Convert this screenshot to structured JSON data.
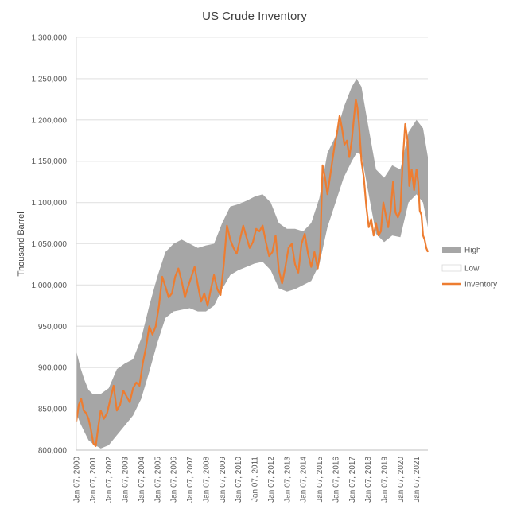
{
  "chart_data": {
    "type": "area",
    "title": "US Crude Inventory",
    "xlabel": "",
    "ylabel": "Thousand Barrel",
    "ylim": [
      800000,
      1300000
    ],
    "y_ticks": [
      800000,
      850000,
      900000,
      950000,
      1000000,
      1050000,
      1100000,
      1150000,
      1200000,
      1250000,
      1300000
    ],
    "y_tick_labels": [
      "800,000",
      "850,000",
      "900,000",
      "950,000",
      "1,000,000",
      "1,050,000",
      "1,100,000",
      "1,150,000",
      "1,200,000",
      "1,250,000",
      "1,300,000"
    ],
    "x_range": [
      2000.0,
      2021.7
    ],
    "x_ticks": [
      2000,
      2001,
      2002,
      2003,
      2004,
      2005,
      2006,
      2007,
      2008,
      2009,
      2010,
      2011,
      2012,
      2013,
      2014,
      2015,
      2016,
      2017,
      2018,
      2019,
      2020,
      2021
    ],
    "x_tick_labels": [
      "Jan 07, 2000",
      "Jan 07, 2001",
      "Jan 07, 2002",
      "Jan 07, 2003",
      "Jan 07, 2004",
      "Jan 07, 2005",
      "Jan 07, 2006",
      "Jan 07, 2007",
      "Jan 07, 2008",
      "Jan 07, 2009",
      "Jan 07, 2010",
      "Jan 07, 2011",
      "Jan 07, 2012",
      "Jan 07, 2013",
      "Jan 07, 2014",
      "Jan 07, 2015",
      "Jan 07, 2016",
      "Jan 07, 2017",
      "Jan 07, 2018",
      "Jan 07, 2019",
      "Jan 07, 2020",
      "Jan 07, 2021"
    ],
    "grid": "horizontal",
    "legend_position": "right",
    "series": [
      {
        "name": "High",
        "color": "#a6a6a6",
        "x": [
          2000.0,
          2000.25,
          2000.5,
          2000.75,
          2001.0,
          2001.5,
          2002.0,
          2002.5,
          2003.0,
          2003.5,
          2004.0,
          2004.5,
          2005.0,
          2005.5,
          2006.0,
          2006.5,
          2007.0,
          2007.5,
          2008.0,
          2008.5,
          2009.0,
          2009.5,
          2010.0,
          2010.5,
          2011.0,
          2011.5,
          2012.0,
          2012.5,
          2013.0,
          2013.5,
          2014.0,
          2014.5,
          2015.0,
          2015.5,
          2016.0,
          2016.5,
          2017.0,
          2017.3,
          2017.6,
          2018.0,
          2018.5,
          2019.0,
          2019.5,
          2020.0,
          2020.5,
          2021.0,
          2021.4,
          2021.7
        ],
        "values": [
          920000,
          900000,
          885000,
          873000,
          868000,
          868000,
          875000,
          898000,
          905000,
          910000,
          935000,
          975000,
          1010000,
          1040000,
          1050000,
          1055000,
          1050000,
          1045000,
          1048000,
          1050000,
          1075000,
          1095000,
          1098000,
          1102000,
          1107000,
          1110000,
          1100000,
          1075000,
          1068000,
          1068000,
          1065000,
          1075000,
          1105000,
          1160000,
          1180000,
          1215000,
          1240000,
          1250000,
          1240000,
          1195000,
          1140000,
          1130000,
          1145000,
          1140000,
          1185000,
          1200000,
          1190000,
          1155000
        ]
      },
      {
        "name": "Low",
        "color": "#ffffff",
        "x": [
          2000.0,
          2000.25,
          2000.5,
          2000.75,
          2001.0,
          2001.5,
          2002.0,
          2002.5,
          2003.0,
          2003.5,
          2004.0,
          2004.5,
          2005.0,
          2005.5,
          2006.0,
          2006.5,
          2007.0,
          2007.5,
          2008.0,
          2008.5,
          2009.0,
          2009.5,
          2010.0,
          2010.5,
          2011.0,
          2011.5,
          2012.0,
          2012.5,
          2013.0,
          2013.5,
          2014.0,
          2014.5,
          2015.0,
          2015.5,
          2016.0,
          2016.5,
          2017.0,
          2017.3,
          2017.6,
          2018.0,
          2018.5,
          2019.0,
          2019.5,
          2020.0,
          2020.5,
          2021.0,
          2021.4,
          2021.7
        ],
        "values": [
          845000,
          832000,
          822000,
          812000,
          808000,
          802000,
          806000,
          818000,
          830000,
          842000,
          862000,
          895000,
          930000,
          960000,
          968000,
          970000,
          972000,
          968000,
          968000,
          975000,
          995000,
          1012000,
          1018000,
          1022000,
          1026000,
          1028000,
          1018000,
          996000,
          992000,
          995000,
          1000000,
          1005000,
          1025000,
          1070000,
          1100000,
          1130000,
          1150000,
          1160000,
          1158000,
          1115000,
          1062000,
          1052000,
          1060000,
          1058000,
          1100000,
          1110000,
          1100000,
          1070000
        ]
      },
      {
        "name": "Inventory",
        "color": "#ed7d31",
        "x": [
          2000.0,
          2000.15,
          2000.3,
          2000.45,
          2000.6,
          2000.75,
          2000.9,
          2001.05,
          2001.2,
          2001.35,
          2001.5,
          2001.7,
          2001.9,
          2002.1,
          2002.3,
          2002.5,
          2002.7,
          2002.9,
          2003.1,
          2003.3,
          2003.5,
          2003.7,
          2003.9,
          2004.1,
          2004.3,
          2004.5,
          2004.7,
          2004.9,
          2005.1,
          2005.3,
          2005.5,
          2005.7,
          2005.9,
          2006.1,
          2006.3,
          2006.5,
          2006.7,
          2006.9,
          2007.1,
          2007.3,
          2007.5,
          2007.7,
          2007.9,
          2008.1,
          2008.3,
          2008.5,
          2008.7,
          2008.9,
          2009.1,
          2009.3,
          2009.5,
          2009.7,
          2009.9,
          2010.1,
          2010.3,
          2010.5,
          2010.7,
          2010.9,
          2011.1,
          2011.3,
          2011.5,
          2011.7,
          2011.9,
          2012.1,
          2012.3,
          2012.5,
          2012.7,
          2012.9,
          2013.1,
          2013.3,
          2013.5,
          2013.7,
          2013.9,
          2014.1,
          2014.3,
          2014.5,
          2014.7,
          2014.9,
          2015.05,
          2015.2,
          2015.35,
          2015.5,
          2015.65,
          2015.8,
          2015.95,
          2016.1,
          2016.25,
          2016.4,
          2016.55,
          2016.7,
          2016.85,
          2017.0,
          2017.15,
          2017.25,
          2017.35,
          2017.45,
          2017.6,
          2017.75,
          2017.9,
          2018.05,
          2018.2,
          2018.35,
          2018.5,
          2018.65,
          2018.8,
          2018.95,
          2019.1,
          2019.25,
          2019.4,
          2019.55,
          2019.7,
          2019.85,
          2020.0,
          2020.15,
          2020.3,
          2020.45,
          2020.55,
          2020.7,
          2020.85,
          2021.0,
          2021.1,
          2021.2,
          2021.3,
          2021.4,
          2021.5,
          2021.6,
          2021.7
        ],
        "values": [
          835000,
          855000,
          862000,
          848000,
          845000,
          838000,
          825000,
          808000,
          805000,
          828000,
          848000,
          838000,
          845000,
          862000,
          878000,
          848000,
          855000,
          872000,
          865000,
          858000,
          875000,
          882000,
          878000,
          905000,
          925000,
          950000,
          940000,
          950000,
          975000,
          1010000,
          998000,
          985000,
          990000,
          1010000,
          1020000,
          1005000,
          985000,
          998000,
          1010000,
          1022000,
          1000000,
          980000,
          990000,
          975000,
          995000,
          1012000,
          995000,
          988000,
          1025000,
          1072000,
          1055000,
          1045000,
          1038000,
          1055000,
          1072000,
          1058000,
          1045000,
          1052000,
          1068000,
          1065000,
          1072000,
          1052000,
          1035000,
          1040000,
          1060000,
          1018000,
          1002000,
          1022000,
          1045000,
          1050000,
          1025000,
          1015000,
          1050000,
          1062000,
          1038000,
          1022000,
          1040000,
          1020000,
          1040000,
          1145000,
          1130000,
          1110000,
          1130000,
          1150000,
          1170000,
          1185000,
          1205000,
          1190000,
          1170000,
          1175000,
          1155000,
          1175000,
          1205000,
          1225000,
          1215000,
          1195000,
          1150000,
          1130000,
          1095000,
          1070000,
          1080000,
          1060000,
          1075000,
          1060000,
          1065000,
          1100000,
          1085000,
          1070000,
          1090000,
          1125000,
          1088000,
          1082000,
          1090000,
          1150000,
          1195000,
          1175000,
          1120000,
          1140000,
          1115000,
          1140000,
          1125000,
          1090000,
          1085000,
          1060000,
          1055000,
          1045000,
          1040000
        ]
      }
    ]
  }
}
